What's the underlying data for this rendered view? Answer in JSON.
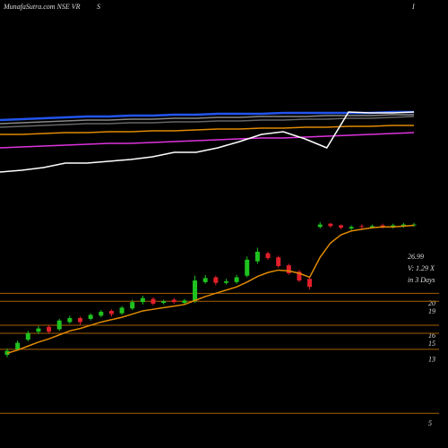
{
  "header": {
    "title": "MunafaSutra.com NSE VR",
    "mid": "S",
    "right": "I"
  },
  "chart_data": [
    {
      "type": "candlestick",
      "categories": [
        null,
        null,
        null,
        null,
        null,
        null,
        null,
        null,
        null,
        null,
        null,
        null,
        null,
        null,
        null,
        null,
        null,
        null,
        null,
        null,
        null,
        null,
        null,
        null,
        null,
        null,
        null,
        null,
        null,
        null,
        null,
        null,
        null,
        null,
        null,
        null,
        null,
        null,
        null,
        null
      ],
      "open": [
        12.3,
        13.0,
        14.2,
        15.2,
        15.8,
        15.5,
        16.4,
        16.9,
        16.8,
        17.2,
        17.8,
        17.5,
        18.1,
        18.9,
        19.3,
        18.8,
        19.2,
        18.8,
        19.0,
        21.4,
        22.0,
        21.3,
        21.4,
        22.2,
        24.0,
        25.0,
        24.5,
        23.5,
        22.7,
        21.8,
        28.3,
        28.7,
        28.5,
        28.1,
        28.4,
        28.2,
        28.5,
        28.3,
        28.4,
        28.5
      ],
      "high": [
        13.1,
        14.1,
        15.3,
        15.9,
        16.0,
        16.8,
        17.2,
        17.1,
        17.5,
        17.9,
        18.0,
        18.4,
        19.2,
        19.7,
        19.5,
        19.2,
        19.4,
        19.3,
        22.2,
        22.3,
        22.2,
        21.8,
        22.3,
        24.6,
        25.7,
        25.2,
        24.7,
        23.7,
        22.9,
        22.0,
        28.9,
        28.8,
        28.6,
        28.5,
        28.6,
        28.6,
        28.7,
        28.7,
        28.8,
        28.8
      ],
      "low": [
        12.0,
        12.8,
        14.0,
        14.9,
        15.0,
        15.3,
        16.2,
        16.1,
        16.6,
        17.0,
        17.1,
        17.3,
        17.9,
        18.6,
        18.5,
        18.6,
        18.7,
        18.6,
        18.8,
        21.2,
        21.0,
        21.1,
        21.2,
        22.0,
        23.7,
        24.2,
        23.2,
        22.3,
        21.4,
        20.5,
        28.1,
        28.2,
        28.0,
        27.9,
        28.1,
        28.1,
        28.1,
        28.1,
        28.2,
        28.3
      ],
      "close": [
        12.8,
        13.8,
        15.0,
        15.6,
        15.2,
        16.6,
        16.9,
        16.4,
        17.3,
        17.7,
        17.4,
        18.2,
        18.9,
        19.4,
        18.7,
        19.0,
        18.9,
        19.1,
        21.6,
        21.9,
        21.3,
        21.5,
        22.0,
        24.2,
        25.2,
        24.4,
        23.4,
        22.5,
        21.6,
        20.8,
        28.6,
        28.4,
        28.2,
        28.3,
        28.3,
        28.4,
        28.3,
        28.5,
        28.6,
        28.6
      ],
      "ma": [
        12.5,
        12.9,
        13.4,
        13.9,
        14.3,
        14.8,
        15.3,
        15.6,
        16.0,
        16.4,
        16.7,
        17.0,
        17.4,
        17.8,
        18.0,
        18.2,
        18.4,
        18.6,
        19.1,
        19.6,
        20.0,
        20.4,
        20.8,
        21.4,
        22.1,
        22.6,
        22.9,
        22.8,
        22.5,
        22.0,
        24.5,
        26.3,
        27.3,
        27.8,
        28.0,
        28.2,
        28.3,
        28.3,
        28.4,
        28.5
      ],
      "up_color": "#1fc21f",
      "down_color": "#e0202a",
      "ma_color": "#e08a00",
      "level_color": "#a65f00",
      "ylim": [
        2,
        56
      ],
      "yticks": [
        20,
        19,
        16,
        15,
        13,
        5
      ],
      "annotations": [
        "26.99",
        "V: 1.29 X",
        "in 3 Days"
      ]
    },
    {
      "type": "line",
      "categories": [
        null,
        null,
        null,
        null,
        null,
        null,
        null,
        null,
        null,
        null,
        null,
        null,
        null,
        null,
        null,
        null,
        null,
        null,
        null,
        null
      ],
      "ylim": [
        0,
        100
      ],
      "series": [
        {
          "color": "#2255ee",
          "values": [
            66,
            67,
            68,
            69,
            70,
            70,
            71,
            71,
            72,
            72,
            73,
            73,
            73,
            74,
            74,
            74,
            74,
            74,
            75,
            75
          ]
        },
        {
          "color": "#888888",
          "values": [
            62,
            63,
            64,
            65,
            66,
            66,
            67,
            67,
            68,
            68,
            69,
            69,
            70,
            70,
            70,
            71,
            71,
            71,
            72,
            72
          ]
        },
        {
          "color": "#666666",
          "values": [
            58,
            59,
            60,
            61,
            62,
            62,
            63,
            63,
            64,
            64,
            65,
            65,
            66,
            66,
            67,
            67,
            68,
            68,
            69,
            70
          ]
        },
        {
          "color": "#e08a00",
          "values": [
            50,
            50,
            51,
            52,
            52,
            53,
            53,
            54,
            54,
            55,
            56,
            56,
            57,
            57,
            58,
            58,
            59,
            59,
            60,
            60
          ]
        },
        {
          "color": "#dd33dd",
          "values": [
            35,
            36,
            37,
            38,
            39,
            40,
            40,
            41,
            42,
            43,
            44,
            45,
            46,
            46,
            47,
            48,
            49,
            50,
            51,
            52
          ]
        },
        {
          "color": "#ffffff",
          "values": [
            8,
            10,
            13,
            18,
            18,
            20,
            22,
            25,
            30,
            30,
            35,
            42,
            50,
            53,
            45,
            35,
            75,
            74,
            74,
            75
          ]
        }
      ]
    }
  ]
}
